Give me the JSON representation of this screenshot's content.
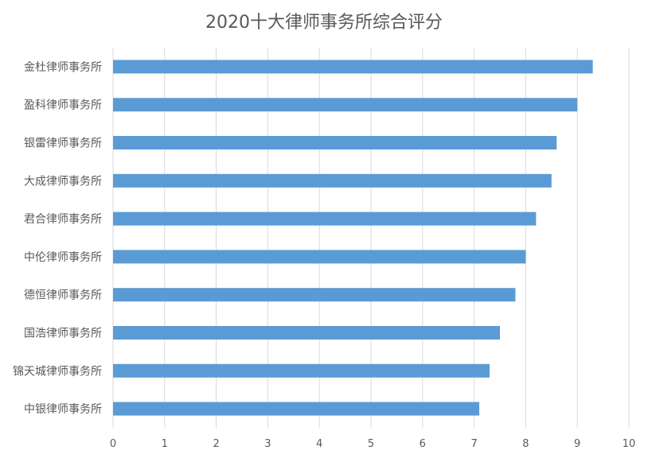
{
  "chart_data": {
    "type": "bar",
    "orientation": "horizontal",
    "title": "2020十大律师事务所综合评分",
    "categories": [
      "金杜律师事务所",
      "盈科律师事务所",
      "银雷律师事务所",
      "大成律师事务所",
      "君合律师事务所",
      "中伦律师事务所",
      "德恒律师事务所",
      "国浩律师事务所",
      "锦天城律师事务所",
      "中银律师事务所"
    ],
    "values": [
      9.3,
      9.0,
      8.6,
      8.5,
      8.2,
      8.0,
      7.8,
      7.5,
      7.3,
      7.1
    ],
    "xlim": [
      0,
      10
    ],
    "xticks": [
      "0",
      "1",
      "2",
      "3",
      "4",
      "5",
      "6",
      "7",
      "8",
      "9",
      "10"
    ],
    "grid": true,
    "legend": "none",
    "colors": {
      "bar": "#5b9bd5",
      "grid": "#d9d9d9",
      "text": "#595959"
    }
  }
}
